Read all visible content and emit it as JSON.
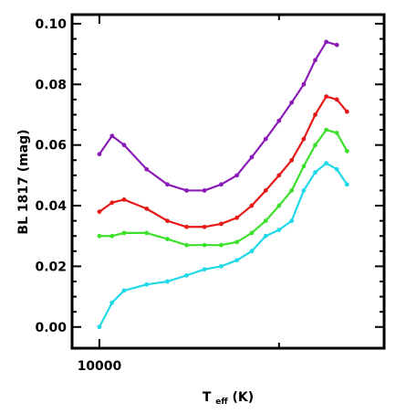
{
  "chart_data": {
    "type": "line",
    "title": "",
    "xlabel_main": "T",
    "xlabel_sub": "eff",
    "xlabel_unit": " (K)",
    "ylabel": "BL 1817 (mag)",
    "x_scale": "log",
    "xlim": [
      9000,
      30000
    ],
    "ylim": [
      -0.007,
      0.103
    ],
    "x_ticks": [
      {
        "value": 10000,
        "label": "10000"
      }
    ],
    "x_minor_ticks": [
      20000
    ],
    "y_ticks": [
      {
        "value": 0.0,
        "label": "0.00"
      },
      {
        "value": 0.02,
        "label": "0.02"
      },
      {
        "value": 0.04,
        "label": "0.04"
      },
      {
        "value": 0.06,
        "label": "0.06"
      },
      {
        "value": 0.08,
        "label": "0.08"
      },
      {
        "value": 0.1,
        "label": "0.10"
      }
    ],
    "y_minor_step": 0.005,
    "grid": false,
    "legend": "none",
    "series": [
      {
        "color": "#8b1cb8",
        "x": [
          10000,
          10500,
          11000,
          12000,
          13000,
          14000,
          15000,
          16000,
          17000,
          18000,
          19000,
          20000,
          21000,
          22000,
          23000,
          24000,
          25000
        ],
        "y": [
          0.057,
          0.063,
          0.06,
          0.052,
          0.047,
          0.045,
          0.045,
          0.047,
          0.05,
          0.056,
          0.062,
          0.068,
          0.074,
          0.08,
          0.088,
          0.094,
          0.093
        ]
      },
      {
        "color": "#e61919",
        "x": [
          10000,
          10500,
          11000,
          12000,
          13000,
          14000,
          15000,
          16000,
          17000,
          18000,
          19000,
          20000,
          21000,
          22000,
          23000,
          24000,
          25000,
          26000
        ],
        "y": [
          0.038,
          0.041,
          0.042,
          0.039,
          0.035,
          0.033,
          0.033,
          0.034,
          0.036,
          0.04,
          0.045,
          0.05,
          0.055,
          0.062,
          0.07,
          0.076,
          0.075,
          0.071
        ]
      },
      {
        "color": "#3de02a",
        "x": [
          10000,
          10500,
          11000,
          12000,
          13000,
          14000,
          15000,
          16000,
          17000,
          18000,
          19000,
          20000,
          21000,
          22000,
          23000,
          24000,
          25000,
          26000
        ],
        "y": [
          0.03,
          0.03,
          0.031,
          0.031,
          0.029,
          0.027,
          0.027,
          0.027,
          0.028,
          0.031,
          0.035,
          0.04,
          0.045,
          0.053,
          0.06,
          0.065,
          0.064,
          0.058
        ]
      },
      {
        "color": "#1fd8e8",
        "x": [
          10000,
          10500,
          11000,
          12000,
          13000,
          14000,
          15000,
          16000,
          17000,
          18000,
          19000,
          20000,
          21000,
          22000,
          23000,
          24000,
          25000,
          26000
        ],
        "y": [
          0.0,
          0.008,
          0.012,
          0.014,
          0.015,
          0.017,
          0.019,
          0.02,
          0.022,
          0.025,
          0.03,
          0.032,
          0.035,
          0.045,
          0.051,
          0.054,
          0.052,
          0.047
        ]
      }
    ]
  }
}
